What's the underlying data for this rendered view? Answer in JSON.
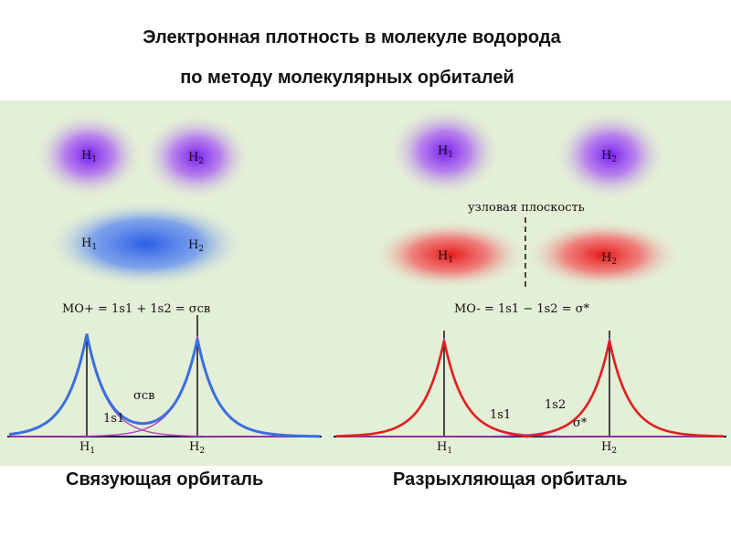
{
  "title": {
    "line1": "Электронная  плотность  в  молекуле  водорода",
    "line2": "по  методу  молекулярных  орбиталей"
  },
  "captions": {
    "left": "Связующая  орбиталь",
    "right": "Разрыхляющая  орбиталь"
  },
  "atoms": {
    "h1": "H",
    "h2": "H",
    "sub1": "1",
    "sub2": "2"
  },
  "nodal_plane": "узловая плоскость",
  "formulas": {
    "bonding": "MO+ =  1s1 + 1s2  = σсв",
    "antibonding": "MO- = 1s1 − 1s2 = σ*"
  },
  "curve_labels": {
    "sigma_bonding": "σсв",
    "sigma_star": "σ*",
    "s1_left": "1s1",
    "s1_right": "1s1",
    "s2_right": "1s2"
  },
  "colors": {
    "panel_bg": "#e3efd6",
    "violet": "#8a2be2",
    "blue": "#3a6fe0",
    "red": "#e02020",
    "purple_curve": "#b040c0",
    "axis": "#1a1a4a"
  }
}
